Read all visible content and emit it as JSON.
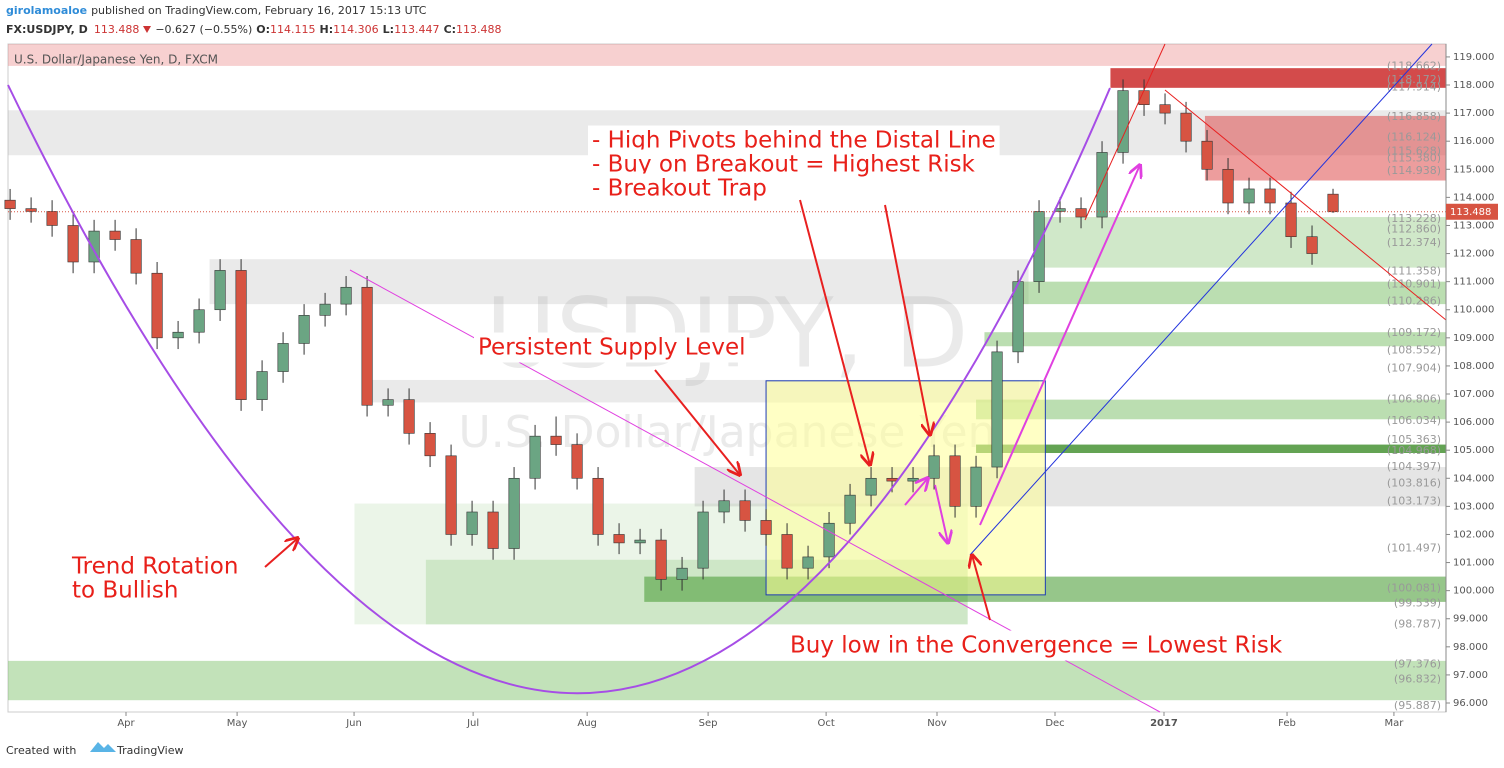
{
  "header": {
    "author": "girolamoaloe",
    "published": "published on TradingView.com, February 16, 2017 15:13 UTC",
    "symbol": "FX:USDJPY, D",
    "price": "113.488",
    "change": "−0.627 (−0.55%)",
    "open_label": "O:",
    "open": "114.115",
    "high_label": "H:",
    "high": "114.306",
    "low_label": "L:",
    "low": "113.447",
    "close_label": "C:",
    "close": "113.488"
  },
  "footer": {
    "created": "Created with",
    "brand": "TradingView"
  },
  "chart_data": {
    "type": "candlestick",
    "legend": "U.S. Dollar/Japanese Yen, D, FXCM",
    "watermark": "USDJPY, D",
    "watermark_sub": "U.S. Dollar/Japanese Yen",
    "up_color": "#6ba583",
    "down_color": "#d75442",
    "xlim": [
      -0.1,
      68.38
    ],
    "ylim": [
      95.68,
      119.46
    ],
    "xticks": [
      {
        "value": 5.52,
        "label": "Apr"
      },
      {
        "value": 10.81,
        "label": "May"
      },
      {
        "value": 16.38,
        "label": "Jun"
      },
      {
        "value": 22.05,
        "label": "Jul"
      },
      {
        "value": 27.48,
        "label": "Aug"
      },
      {
        "value": 33.24,
        "label": "Sep"
      },
      {
        "value": 38.86,
        "label": "Oct"
      },
      {
        "value": 44.14,
        "label": "Nov"
      },
      {
        "value": 49.76,
        "label": "Dec"
      },
      {
        "value": 54.95,
        "label": "2017"
      },
      {
        "value": 60.81,
        "label": "Feb"
      },
      {
        "value": 65.9,
        "label": "Mar"
      }
    ],
    "yticks": [
      {
        "value": 96,
        "label": "96.000"
      },
      {
        "value": 97,
        "label": "97.000"
      },
      {
        "value": 98,
        "label": "98.000"
      },
      {
        "value": 99,
        "label": "99.000"
      },
      {
        "value": 100,
        "label": "100.000"
      },
      {
        "value": 101,
        "label": "101.000"
      },
      {
        "value": 102,
        "label": "102.000"
      },
      {
        "value": 103,
        "label": "103.000"
      },
      {
        "value": 104,
        "label": "104.000"
      },
      {
        "value": 105,
        "label": "105.000"
      },
      {
        "value": 106,
        "label": "106.000"
      },
      {
        "value": 107,
        "label": "107.000"
      },
      {
        "value": 108,
        "label": "108.000"
      },
      {
        "value": 109,
        "label": "109.000"
      },
      {
        "value": 110,
        "label": "110.000"
      },
      {
        "value": 111,
        "label": "111.000"
      },
      {
        "value": 112,
        "label": "112.000"
      },
      {
        "value": 113,
        "label": "113.000"
      },
      {
        "value": 114,
        "label": "114.000"
      },
      {
        "value": 115,
        "label": "115.000"
      },
      {
        "value": 116,
        "label": "116.000"
      },
      {
        "value": 117,
        "label": "117.000"
      },
      {
        "value": 118,
        "label": "118.000"
      },
      {
        "value": 119,
        "label": "119.000"
      }
    ],
    "open": [
      113.9,
      113.6,
      113.5,
      113.0,
      111.7,
      112.8,
      112.5,
      111.3,
      109.0,
      109.2,
      110.0,
      111.4,
      106.8,
      107.8,
      108.8,
      109.8,
      110.2,
      110.8,
      106.6,
      106.8,
      105.6,
      104.8,
      102.0,
      102.8,
      101.5,
      104.0,
      105.5,
      105.2,
      104.0,
      102.0,
      101.7,
      101.8,
      100.4,
      100.8,
      102.8,
      103.2,
      102.5,
      102.0,
      100.8,
      101.2,
      102.4,
      103.4,
      104.0,
      103.9,
      104.0,
      104.8,
      103.0,
      104.4,
      108.5,
      111.0,
      113.5,
      113.6,
      113.3,
      115.6,
      117.8,
      117.3,
      117.0,
      116.0,
      115.0,
      113.8,
      114.3,
      113.8,
      112.6,
      114.115
    ],
    "high": [
      114.3,
      114.0,
      113.9,
      113.4,
      113.2,
      113.2,
      112.9,
      111.7,
      109.6,
      110.4,
      111.8,
      111.8,
      108.2,
      109.2,
      110.2,
      110.6,
      111.2,
      111.2,
      107.2,
      107.2,
      106.0,
      105.2,
      103.2,
      103.2,
      104.4,
      105.9,
      106.2,
      105.6,
      104.4,
      102.4,
      102.2,
      102.2,
      101.2,
      103.2,
      103.6,
      103.6,
      102.9,
      102.4,
      101.6,
      102.8,
      103.8,
      104.4,
      104.4,
      104.4,
      105.2,
      105.2,
      104.8,
      108.9,
      111.4,
      113.9,
      114.0,
      114.0,
      116.0,
      118.2,
      118.2,
      117.7,
      117.4,
      116.4,
      115.4,
      114.7,
      114.7,
      114.2,
      113.0,
      114.306
    ],
    "low": [
      113.2,
      113.1,
      112.6,
      111.3,
      111.3,
      112.1,
      110.9,
      108.6,
      108.6,
      108.8,
      109.6,
      106.4,
      106.4,
      107.4,
      108.4,
      109.4,
      109.8,
      106.2,
      106.2,
      105.2,
      104.4,
      101.6,
      101.6,
      101.1,
      101.1,
      103.6,
      104.8,
      103.6,
      101.6,
      101.3,
      101.3,
      100.0,
      100.0,
      100.4,
      102.4,
      102.1,
      101.6,
      100.4,
      100.4,
      100.8,
      102.0,
      103.0,
      103.5,
      103.5,
      103.6,
      102.6,
      102.6,
      104.0,
      108.1,
      110.6,
      113.1,
      112.9,
      112.9,
      115.2,
      116.9,
      116.6,
      115.6,
      114.6,
      113.4,
      113.4,
      113.4,
      112.2,
      111.6,
      113.447
    ],
    "close": [
      113.6,
      113.5,
      113.0,
      111.7,
      112.8,
      112.5,
      111.3,
      109.0,
      109.2,
      110.0,
      111.4,
      106.8,
      107.8,
      108.8,
      109.8,
      110.2,
      110.8,
      106.6,
      106.8,
      105.6,
      104.8,
      102.0,
      102.8,
      101.5,
      104.0,
      105.5,
      105.2,
      104.0,
      102.0,
      101.7,
      101.8,
      100.4,
      100.8,
      102.8,
      103.2,
      102.5,
      102.0,
      100.8,
      101.2,
      102.4,
      103.4,
      104.0,
      103.9,
      104.0,
      104.8,
      103.0,
      104.4,
      108.5,
      111.0,
      113.5,
      113.6,
      113.3,
      115.6,
      117.8,
      117.3,
      117.0,
      116.0,
      115.0,
      113.8,
      114.3,
      113.8,
      112.6,
      112.0,
      113.488
    ],
    "zones": [
      {
        "from": -0.1,
        "to": 68.38,
        "lo": 118.68,
        "hi": 119.46,
        "color": "rgba(233,120,120,0.35)"
      },
      {
        "from": -0.1,
        "to": 68.38,
        "lo": 115.5,
        "hi": 117.1,
        "color": "rgba(170,170,170,0.25)"
      },
      {
        "from": 9.5,
        "to": 48.5,
        "lo": 110.2,
        "hi": 111.8,
        "color": "rgba(170,170,170,0.25)"
      },
      {
        "from": 17.1,
        "to": 49.0,
        "lo": 106.7,
        "hi": 107.5,
        "color": "rgba(170,170,170,0.25)"
      },
      {
        "from": 16.4,
        "to": 45.6,
        "lo": 98.8,
        "hi": 103.1,
        "color": "rgba(120,190,100,0.15)"
      },
      {
        "from": 19.8,
        "to": 45.6,
        "lo": 98.8,
        "hi": 101.1,
        "color": "rgba(120,190,100,0.25)"
      },
      {
        "from": 30.2,
        "to": 68.38,
        "lo": 99.6,
        "hi": 100.5,
        "color": "rgba(80,160,60,0.6)"
      },
      {
        "from": -0.1,
        "to": 68.38,
        "lo": 96.1,
        "hi": 97.5,
        "color": "rgba(120,190,100,0.45)"
      },
      {
        "from": 32.6,
        "to": 68.38,
        "lo": 103.0,
        "hi": 104.4,
        "color": "rgba(170,170,170,0.3)"
      },
      {
        "from": 46.0,
        "to": 68.38,
        "lo": 104.9,
        "hi": 105.2,
        "color": "rgba(60,140,40,0.8)"
      },
      {
        "from": 46.0,
        "to": 68.38,
        "lo": 106.1,
        "hi": 106.8,
        "color": "rgba(120,190,100,0.5)"
      },
      {
        "from": 46.4,
        "to": 68.38,
        "lo": 108.7,
        "hi": 109.2,
        "color": "rgba(120,190,100,0.5)"
      },
      {
        "from": 48.1,
        "to": 68.38,
        "lo": 110.2,
        "hi": 111.0,
        "color": "rgba(120,190,100,0.5)"
      },
      {
        "from": 49.1,
        "to": 68.38,
        "lo": 111.5,
        "hi": 113.3,
        "color": "rgba(120,190,100,0.35)"
      },
      {
        "from": 52.4,
        "to": 68.38,
        "lo": 117.9,
        "hi": 118.6,
        "color": "rgba(200,30,30,0.8)"
      },
      {
        "from": 56.9,
        "to": 68.38,
        "lo": 114.6,
        "hi": 116.9,
        "color": "rgba(220,60,60,0.5)"
      },
      {
        "from": 36.0,
        "to": 49.3,
        "lo": 99.85,
        "hi": 107.47,
        "color": "rgba(255,255,150,0.55)",
        "stroke": "#1e3cb4"
      }
    ],
    "level_labels": [
      {
        "value": 118.662,
        "label": "(118.662)"
      },
      {
        "value": 118.172,
        "label": "(118.172)"
      },
      {
        "value": 117.914,
        "label": "(117.914)"
      },
      {
        "value": 116.858,
        "label": "(116.858)"
      },
      {
        "value": 116.124,
        "label": "(116.124)"
      },
      {
        "value": 115.628,
        "label": "(115.628)"
      },
      {
        "value": 115.38,
        "label": "(115.380)"
      },
      {
        "value": 114.938,
        "label": "(114.938)"
      },
      {
        "value": 113.228,
        "label": "(113.228)"
      },
      {
        "value": 112.86,
        "label": "(112.860)"
      },
      {
        "value": 112.374,
        "label": "(112.374)"
      },
      {
        "value": 111.358,
        "label": "(111.358)"
      },
      {
        "value": 110.901,
        "label": "(110.901)"
      },
      {
        "value": 110.286,
        "label": "(110.286)"
      },
      {
        "value": 109.172,
        "label": "(109.172)"
      },
      {
        "value": 108.552,
        "label": "(108.552)"
      },
      {
        "value": 107.904,
        "label": "(107.904)"
      },
      {
        "value": 106.806,
        "label": "(106.806)"
      },
      {
        "value": 106.034,
        "label": "(106.034)"
      },
      {
        "value": 105.363,
        "label": "(105.363)"
      },
      {
        "value": 104.968,
        "label": "(104.968)"
      },
      {
        "value": 104.397,
        "label": "(104.397)"
      },
      {
        "value": 103.816,
        "label": "(103.816)"
      },
      {
        "value": 103.173,
        "label": "(103.173)"
      },
      {
        "value": 101.497,
        "label": "(101.497)"
      },
      {
        "value": 100.081,
        "label": "(100.081)"
      },
      {
        "value": 99.539,
        "label": "(99.539)"
      },
      {
        "value": 98.787,
        "label": "(98.787)"
      },
      {
        "value": 97.376,
        "label": "(97.376)"
      },
      {
        "value": 96.832,
        "label": "(96.832)"
      },
      {
        "value": 95.887,
        "label": "(95.887)"
      }
    ],
    "annotations": {
      "pivots": "- High Pivots behind the Distal Line",
      "breakout": "- Buy on Breakout = Highest Risk",
      "trap": "- Breakout Trap",
      "supply": "Persistent Supply Level",
      "rotation1": "Trend Rotation",
      "rotation2": "to Bullish",
      "convergence": "Buy low in the Convergence = Lowest Risk"
    }
  }
}
